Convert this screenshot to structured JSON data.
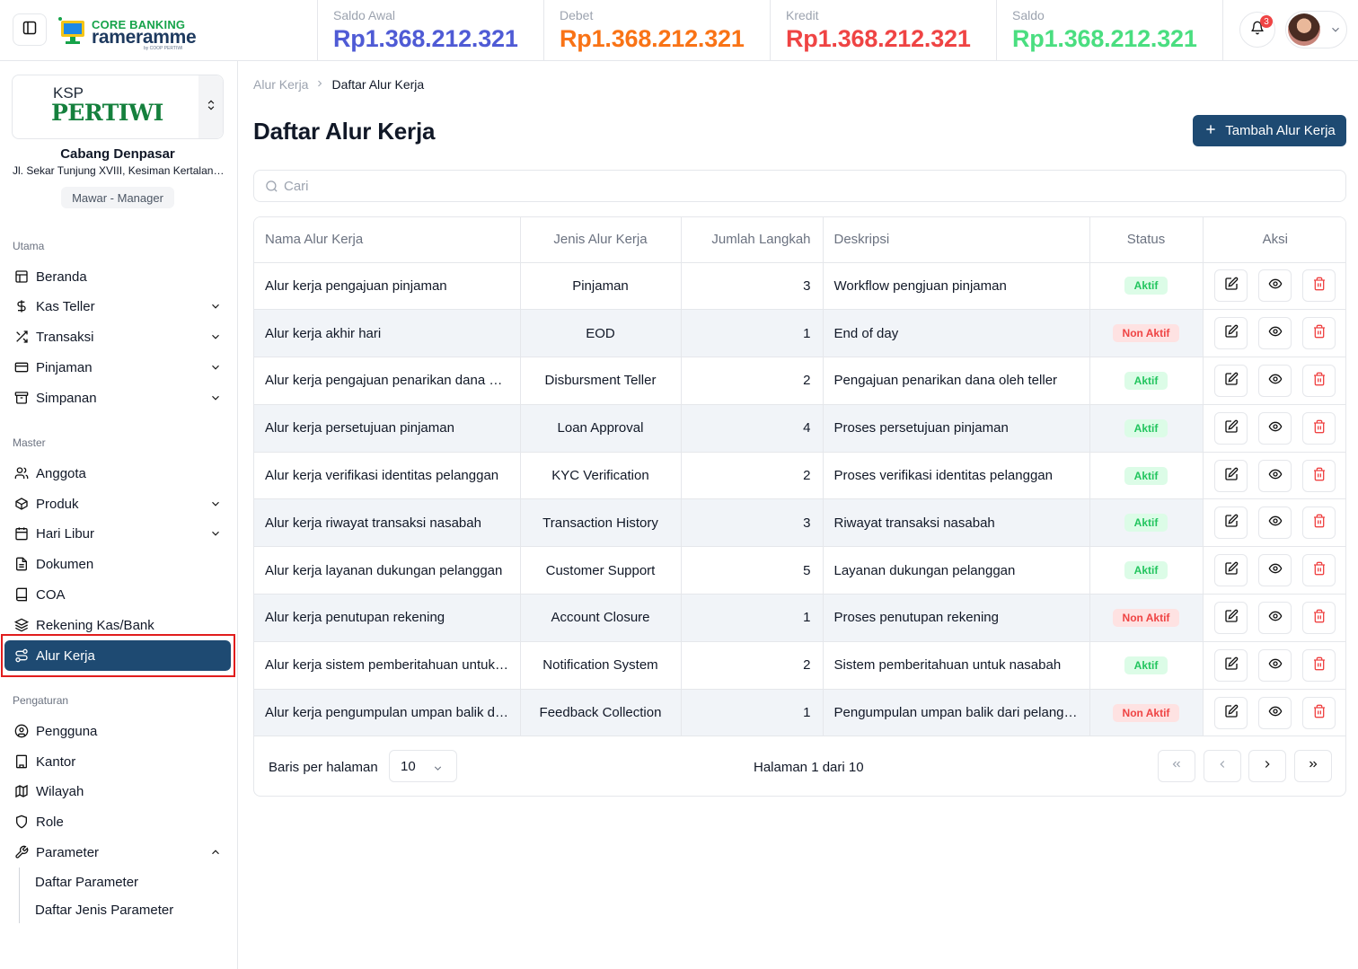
{
  "header": {
    "logo": {
      "line1": "CORE BANKING",
      "line2": "rameramme",
      "line3": "by COOP PERTIWI"
    },
    "notifications": {
      "count": "3"
    },
    "stats": [
      {
        "label": "Saldo Awal",
        "value": "Rp1.368.212.321",
        "color": "#4f5bd5"
      },
      {
        "label": "Debet",
        "value": "Rp1.368.212.321",
        "color": "#f97316"
      },
      {
        "label": "Kredit",
        "value": "Rp1.368.212.321",
        "color": "#ef4444"
      },
      {
        "label": "Saldo",
        "value": "Rp1.368.212.321",
        "color": "#4ade80"
      }
    ]
  },
  "sidebar": {
    "org": {
      "ksp": "KSP",
      "name": "PERTIWI",
      "branch": "Cabang Denpasar",
      "address": "Jl. Sekar Tunjung XVIII, Kesiman Kertalangu, Denpasar",
      "user": "Mawar - Manager"
    },
    "sections": {
      "main": "Utama",
      "master": "Master",
      "settings": "Pengaturan"
    },
    "items": {
      "beranda": "Beranda",
      "kas_teller": "Kas Teller",
      "transaksi": "Transaksi",
      "pinjaman": "Pinjaman",
      "simpanan": "Simpanan",
      "anggota": "Anggota",
      "produk": "Produk",
      "hari_libur": "Hari Libur",
      "dokumen": "Dokumen",
      "coa": "COA",
      "rekening": "Rekening Kas/Bank",
      "alur_kerja": "Alur Kerja",
      "pengguna": "Pengguna",
      "kantor": "Kantor",
      "wilayah": "Wilayah",
      "role": "Role",
      "parameter": "Parameter",
      "daftar_parameter": "Daftar Parameter",
      "daftar_jenis_parameter": "Daftar Jenis Parameter"
    }
  },
  "main": {
    "breadcrumb": {
      "parent": "Alur Kerja",
      "current": "Daftar Alur Kerja"
    },
    "title": "Daftar Alur Kerja",
    "add_button": "Tambah Alur Kerja",
    "search_placeholder": "Cari",
    "table": {
      "headers": [
        "Nama Alur Kerja",
        "Jenis Alur Kerja",
        "Jumlah Langkah",
        "Deskripsi",
        "Status",
        "Aksi"
      ],
      "rows": [
        [
          "Alur kerja pengajuan pinjaman",
          "Pinjaman",
          "3",
          "Workflow pengjuan pinjaman",
          "Aktif"
        ],
        [
          "Alur kerja akhir hari",
          "EOD",
          "1",
          "End of day",
          "Non Aktif"
        ],
        [
          "Alur kerja pengajuan penarikan dana oleh teller",
          "Disbursment Teller",
          "2",
          "Pengajuan penarikan dana  oleh teller",
          "Aktif"
        ],
        [
          "Alur kerja persetujuan pinjaman",
          "Loan Approval",
          "4",
          "Proses persetujuan pinjaman",
          "Aktif"
        ],
        [
          "Alur kerja verifikasi identitas pelanggan",
          "KYC Verification",
          "2",
          "Proses verifikasi identitas pelanggan",
          "Aktif"
        ],
        [
          "Alur kerja riwayat transaksi nasabah",
          "Transaction History",
          "3",
          "Riwayat transaksi nasabah",
          "Aktif"
        ],
        [
          "Alur kerja layanan dukungan pelanggan",
          "Customer Support",
          "5",
          "Layanan dukungan pelanggan",
          "Aktif"
        ],
        [
          "Alur kerja penutupan rekening",
          "Account Closure",
          "1",
          "Proses penutupan rekening",
          "Non Aktif"
        ],
        [
          "Alur kerja sistem pemberitahuan untuk nasabah",
          "Notification System",
          "2",
          "Sistem pemberitahuan untuk nasabah",
          "Aktif"
        ],
        [
          "Alur kerja pengumpulan umpan balik dari pelanggan",
          "Feedback Collection",
          "1",
          "Pengumpulan umpan balik dari pelanggan",
          "Non Aktif"
        ]
      ]
    },
    "pagination": {
      "rows_label": "Baris per halaman",
      "rows_value": "10",
      "page_text": "Halaman 1 dari 10"
    }
  }
}
